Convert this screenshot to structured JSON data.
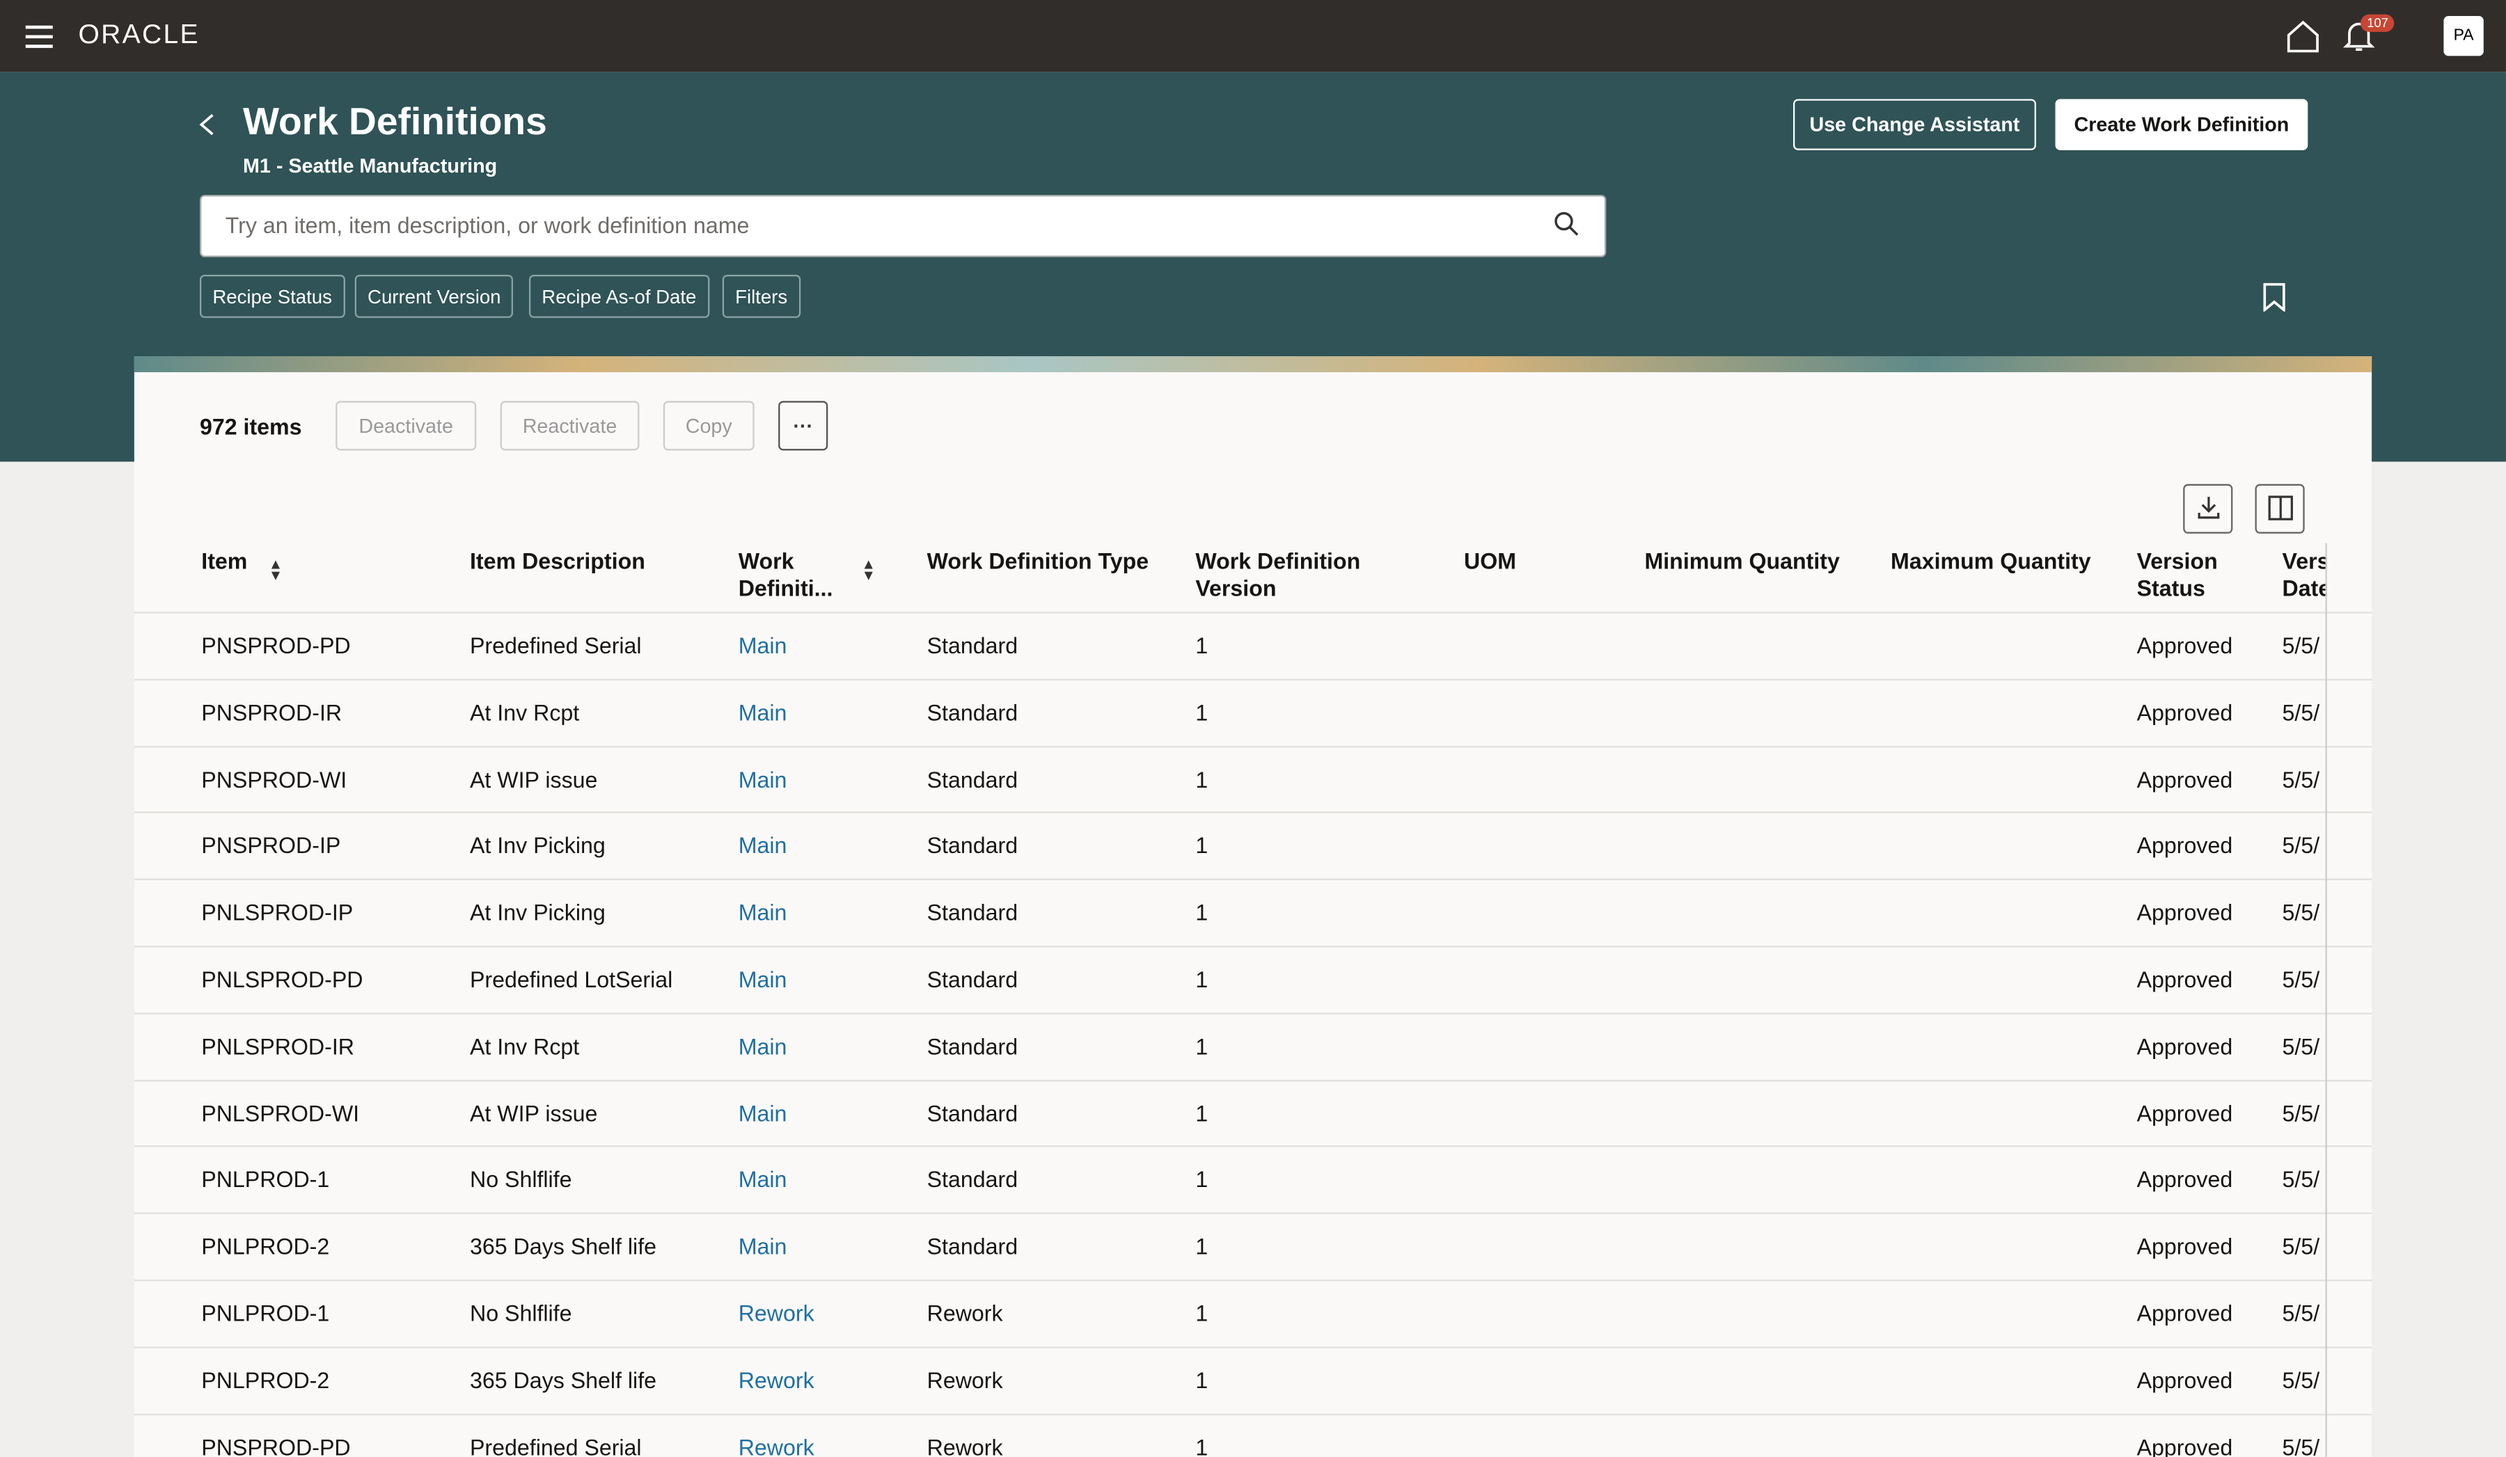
{
  "topbar": {
    "logo": "ORACLE",
    "badge": "107",
    "avatar": "PA"
  },
  "header": {
    "title": "Work Definitions",
    "subtitle": "M1 - Seattle Manufacturing",
    "search_placeholder": "Try an item, item description, or work definition name",
    "buttons": [
      "Use Change Assistant",
      "Create Work Definition"
    ],
    "filters": [
      "Recipe Status",
      "Current Version",
      "Recipe As-of Date",
      "Filters"
    ]
  },
  "toolbar": {
    "count": "972 items",
    "actions": [
      "Deactivate",
      "Reactivate",
      "Copy"
    ]
  },
  "table": {
    "columns": [
      "Item",
      "Item Description",
      "Work Definiti...",
      "Work Definition Type",
      "Work Definition Version",
      "UOM",
      "Minimum Quantity",
      "Maximum Quantity",
      "Version Status",
      "Version Date"
    ],
    "rows": [
      [
        "PNSPROD-PD",
        "Predefined Serial",
        "Main",
        "Standard",
        "1",
        "",
        "",
        "",
        "Approved",
        "5/5/"
      ],
      [
        "PNSPROD-IR",
        "At Inv Rcpt",
        "Main",
        "Standard",
        "1",
        "",
        "",
        "",
        "Approved",
        "5/5/"
      ],
      [
        "PNSPROD-WI",
        "At WIP issue",
        "Main",
        "Standard",
        "1",
        "",
        "",
        "",
        "Approved",
        "5/5/"
      ],
      [
        "PNSPROD-IP",
        "At Inv Picking",
        "Main",
        "Standard",
        "1",
        "",
        "",
        "",
        "Approved",
        "5/5/"
      ],
      [
        "PNLSPROD-IP",
        "At Inv Picking",
        "Main",
        "Standard",
        "1",
        "",
        "",
        "",
        "Approved",
        "5/5/"
      ],
      [
        "PNLSPROD-PD",
        "Predefined LotSerial",
        "Main",
        "Standard",
        "1",
        "",
        "",
        "",
        "Approved",
        "5/5/"
      ],
      [
        "PNLSPROD-IR",
        "At Inv Rcpt",
        "Main",
        "Standard",
        "1",
        "",
        "",
        "",
        "Approved",
        "5/5/"
      ],
      [
        "PNLSPROD-WI",
        "At WIP issue",
        "Main",
        "Standard",
        "1",
        "",
        "",
        "",
        "Approved",
        "5/5/"
      ],
      [
        "PNLPROD-1",
        "No Shlflife",
        "Main",
        "Standard",
        "1",
        "",
        "",
        "",
        "Approved",
        "5/5/"
      ],
      [
        "PNLPROD-2",
        "365 Days Shelf life",
        "Main",
        "Standard",
        "1",
        "",
        "",
        "",
        "Approved",
        "5/5/"
      ],
      [
        "PNLPROD-1",
        "No Shlflife",
        "Rework",
        "Rework",
        "1",
        "",
        "",
        "",
        "Approved",
        "5/5/"
      ],
      [
        "PNLPROD-2",
        "365 Days Shelf life",
        "Rework",
        "Rework",
        "1",
        "",
        "",
        "",
        "Approved",
        "5/5/"
      ],
      [
        "PNSPROD-PD",
        "Predefined Serial",
        "Rework",
        "Rework",
        "1",
        "",
        "",
        "",
        "Approved",
        "5/5/"
      ]
    ]
  }
}
